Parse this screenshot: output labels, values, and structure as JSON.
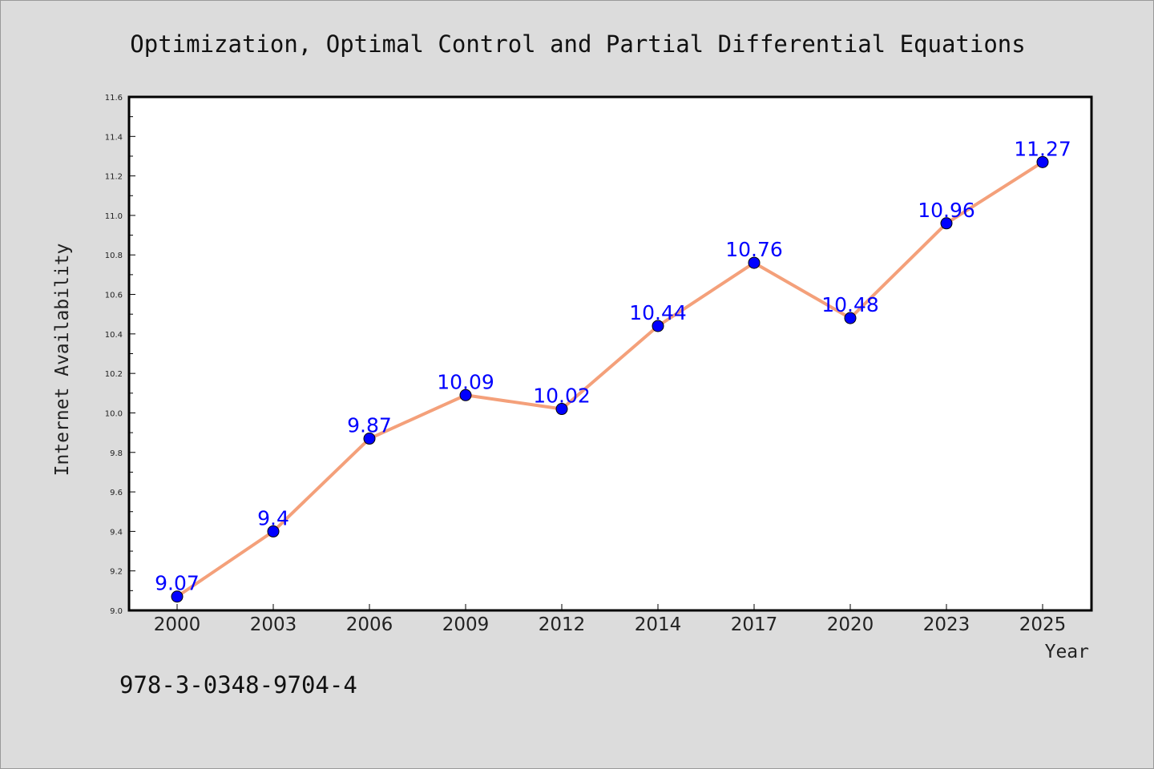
{
  "chart_data": {
    "type": "line",
    "title": "Optimization, Optimal Control and Partial Differential Equations",
    "xlabel": "Year",
    "ylabel": "Internet Availability",
    "categories": [
      "2000",
      "2003",
      "2006",
      "2009",
      "2012",
      "2014",
      "2017",
      "2020",
      "2023",
      "2025"
    ],
    "series": [
      {
        "values": [
          9.07,
          9.4,
          9.87,
          10.09,
          10.02,
          10.44,
          10.76,
          10.48,
          10.96,
          11.27
        ],
        "labels": [
          "9.07",
          "9.4",
          "9.87",
          "10.09",
          "10.02",
          "10.44",
          "10.76",
          "10.48",
          "10.96",
          "11.27"
        ],
        "line_color": "#f4a07a",
        "marker_color": "#0000ff"
      }
    ],
    "ylim": [
      9.0,
      11.6
    ],
    "yticks": [
      "9.0",
      "9.2",
      "9.4",
      "9.6",
      "9.8",
      "10.0",
      "10.2",
      "10.4",
      "10.6",
      "10.8",
      "11.0",
      "11.2",
      "11.4",
      "11.6"
    ],
    "grid": false,
    "legend": "none"
  },
  "footer": {
    "isbn": "978-3-0348-9704-4"
  },
  "colors": {
    "background": "#dcdcdc",
    "plot_background": "#ffffff",
    "label_color": "#0000ff"
  }
}
